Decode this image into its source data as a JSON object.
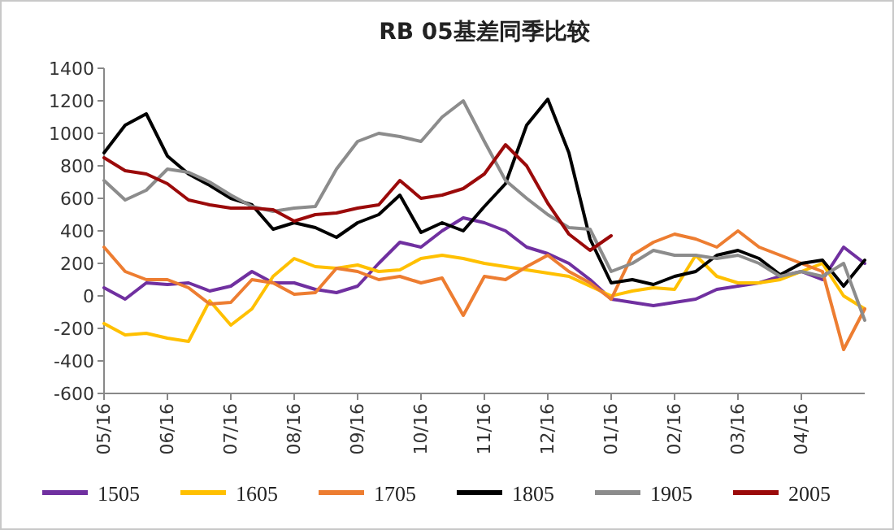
{
  "chart_data": {
    "type": "line",
    "title": "RB 05基差同季比较",
    "categories": [
      "05/16",
      null,
      null,
      "06/16",
      null,
      null,
      "07/16",
      null,
      null,
      "08/16",
      null,
      null,
      "09/16",
      null,
      null,
      "10/16",
      null,
      null,
      "11/16",
      null,
      null,
      "12/16",
      null,
      null,
      "01/16",
      null,
      null,
      "02/16",
      null,
      null,
      "03/16",
      null,
      null,
      "04/16",
      null,
      null,
      null
    ],
    "series": [
      {
        "name": "1505",
        "color": "#7030a0",
        "values": [
          50,
          -20,
          80,
          70,
          80,
          30,
          60,
          150,
          80,
          80,
          40,
          20,
          60,
          200,
          330,
          300,
          400,
          480,
          450,
          400,
          300,
          260,
          200,
          100,
          -20,
          -40,
          -60,
          -40,
          -20,
          40,
          60,
          80,
          120,
          150,
          100,
          300,
          200
        ]
      },
      {
        "name": "1605",
        "color": "#ffc000",
        "values": [
          -170,
          -240,
          -230,
          -260,
          -280,
          -30,
          -180,
          -80,
          120,
          230,
          180,
          170,
          190,
          150,
          160,
          230,
          250,
          230,
          200,
          180,
          160,
          140,
          120,
          60,
          0,
          30,
          50,
          40,
          250,
          120,
          80,
          80,
          100,
          150,
          200,
          0,
          -80
        ]
      },
      {
        "name": "1705",
        "color": "#ed7d31",
        "values": [
          300,
          150,
          100,
          100,
          50,
          -50,
          -40,
          100,
          80,
          10,
          20,
          170,
          150,
          100,
          120,
          80,
          110,
          -120,
          120,
          100,
          180,
          250,
          150,
          80,
          -20,
          250,
          330,
          380,
          350,
          300,
          400,
          300,
          250,
          200,
          150,
          -330,
          -80
        ]
      },
      {
        "name": "1805",
        "color": "#000000",
        "values": [
          880,
          1050,
          1120,
          860,
          750,
          680,
          600,
          560,
          410,
          450,
          420,
          360,
          450,
          500,
          620,
          390,
          450,
          400,
          550,
          690,
          1050,
          1210,
          880,
          350,
          80,
          100,
          70,
          120,
          150,
          250,
          280,
          230,
          130,
          200,
          220,
          60,
          220
        ]
      },
      {
        "name": "1905",
        "color": "#8c8c8c",
        "values": [
          710,
          590,
          650,
          780,
          760,
          700,
          620,
          550,
          520,
          540,
          550,
          780,
          950,
          1000,
          980,
          950,
          1100,
          1200,
          950,
          710,
          600,
          500,
          420,
          410,
          150,
          200,
          280,
          250,
          250,
          230,
          250,
          200,
          120,
          150,
          120,
          200,
          -150
        ]
      },
      {
        "name": "2005",
        "color": "#9b0a0a",
        "values": [
          850,
          770,
          750,
          690,
          590,
          560,
          540,
          540,
          530,
          460,
          500,
          510,
          540,
          560,
          710,
          600,
          620,
          660,
          750,
          930,
          800,
          570,
          380,
          280,
          370,
          null,
          null,
          null,
          null,
          null,
          null,
          null,
          null,
          null,
          null,
          null,
          null
        ]
      }
    ],
    "ylim": [
      -600,
      1400
    ],
    "yticks": [
      -600,
      -400,
      -200,
      0,
      200,
      400,
      600,
      800,
      1000,
      1200,
      1400
    ],
    "grid": false,
    "legend": "bottom"
  }
}
